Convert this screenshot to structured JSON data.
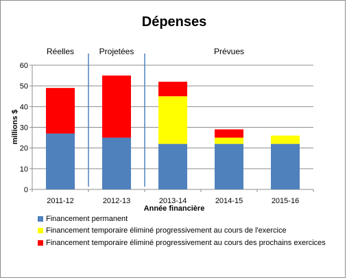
{
  "chart_data": {
    "type": "bar",
    "stacked": true,
    "title": "Dépenses",
    "xlabel": "Année financière",
    "ylabel": "millions $",
    "ylim": [
      0,
      60
    ],
    "yticks": [
      "0",
      "10",
      "20",
      "30",
      "40",
      "50",
      "60"
    ],
    "grid": true,
    "legend_position": "bottom",
    "categories": [
      "2011-12",
      "2012-13",
      "2013-14",
      "2014-15",
      "2015-16"
    ],
    "period_labels": [
      "Réelles",
      "Projetées",
      "Prévues"
    ],
    "series": [
      {
        "name": "Financement permanent",
        "color": "#4f81bd",
        "values": [
          27,
          25,
          22,
          22,
          22
        ]
      },
      {
        "name": "Financement temporaire éliminé progressivement au cours de l'exercice",
        "color": "#ffff00",
        "values": [
          0,
          0,
          23,
          3,
          4
        ]
      },
      {
        "name": "Financement temporaire éliminé progressivement au cours des prochains exercices",
        "color": "#ff0000",
        "values": [
          22,
          30,
          7,
          4,
          0
        ]
      }
    ]
  }
}
